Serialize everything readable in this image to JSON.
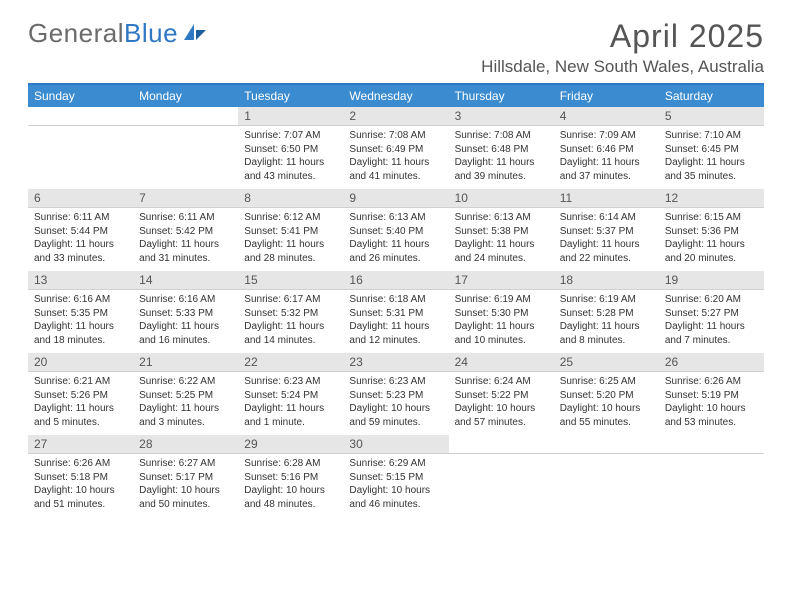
{
  "brand": {
    "word1": "General",
    "word2": "Blue"
  },
  "title": "April 2025",
  "location": "Hillsdale, New South Wales, Australia",
  "colors": {
    "header_bg": "#3b8bd0",
    "header_border": "#2f78c4",
    "daynum_bg": "#e6e6e6",
    "text": "#333333",
    "title": "#555555"
  },
  "weekdays": [
    "Sunday",
    "Monday",
    "Tuesday",
    "Wednesday",
    "Thursday",
    "Friday",
    "Saturday"
  ],
  "grid": {
    "lead_blank": 2,
    "days_in_month": 30
  },
  "days": {
    "1": {
      "sunrise": "7:07 AM",
      "sunset": "6:50 PM",
      "daylight": "11 hours and 43 minutes."
    },
    "2": {
      "sunrise": "7:08 AM",
      "sunset": "6:49 PM",
      "daylight": "11 hours and 41 minutes."
    },
    "3": {
      "sunrise": "7:08 AM",
      "sunset": "6:48 PM",
      "daylight": "11 hours and 39 minutes."
    },
    "4": {
      "sunrise": "7:09 AM",
      "sunset": "6:46 PM",
      "daylight": "11 hours and 37 minutes."
    },
    "5": {
      "sunrise": "7:10 AM",
      "sunset": "6:45 PM",
      "daylight": "11 hours and 35 minutes."
    },
    "6": {
      "sunrise": "6:11 AM",
      "sunset": "5:44 PM",
      "daylight": "11 hours and 33 minutes."
    },
    "7": {
      "sunrise": "6:11 AM",
      "sunset": "5:42 PM",
      "daylight": "11 hours and 31 minutes."
    },
    "8": {
      "sunrise": "6:12 AM",
      "sunset": "5:41 PM",
      "daylight": "11 hours and 28 minutes."
    },
    "9": {
      "sunrise": "6:13 AM",
      "sunset": "5:40 PM",
      "daylight": "11 hours and 26 minutes."
    },
    "10": {
      "sunrise": "6:13 AM",
      "sunset": "5:38 PM",
      "daylight": "11 hours and 24 minutes."
    },
    "11": {
      "sunrise": "6:14 AM",
      "sunset": "5:37 PM",
      "daylight": "11 hours and 22 minutes."
    },
    "12": {
      "sunrise": "6:15 AM",
      "sunset": "5:36 PM",
      "daylight": "11 hours and 20 minutes."
    },
    "13": {
      "sunrise": "6:16 AM",
      "sunset": "5:35 PM",
      "daylight": "11 hours and 18 minutes."
    },
    "14": {
      "sunrise": "6:16 AM",
      "sunset": "5:33 PM",
      "daylight": "11 hours and 16 minutes."
    },
    "15": {
      "sunrise": "6:17 AM",
      "sunset": "5:32 PM",
      "daylight": "11 hours and 14 minutes."
    },
    "16": {
      "sunrise": "6:18 AM",
      "sunset": "5:31 PM",
      "daylight": "11 hours and 12 minutes."
    },
    "17": {
      "sunrise": "6:19 AM",
      "sunset": "5:30 PM",
      "daylight": "11 hours and 10 minutes."
    },
    "18": {
      "sunrise": "6:19 AM",
      "sunset": "5:28 PM",
      "daylight": "11 hours and 8 minutes."
    },
    "19": {
      "sunrise": "6:20 AM",
      "sunset": "5:27 PM",
      "daylight": "11 hours and 7 minutes."
    },
    "20": {
      "sunrise": "6:21 AM",
      "sunset": "5:26 PM",
      "daylight": "11 hours and 5 minutes."
    },
    "21": {
      "sunrise": "6:22 AM",
      "sunset": "5:25 PM",
      "daylight": "11 hours and 3 minutes."
    },
    "22": {
      "sunrise": "6:23 AM",
      "sunset": "5:24 PM",
      "daylight": "11 hours and 1 minute."
    },
    "23": {
      "sunrise": "6:23 AM",
      "sunset": "5:23 PM",
      "daylight": "10 hours and 59 minutes."
    },
    "24": {
      "sunrise": "6:24 AM",
      "sunset": "5:22 PM",
      "daylight": "10 hours and 57 minutes."
    },
    "25": {
      "sunrise": "6:25 AM",
      "sunset": "5:20 PM",
      "daylight": "10 hours and 55 minutes."
    },
    "26": {
      "sunrise": "6:26 AM",
      "sunset": "5:19 PM",
      "daylight": "10 hours and 53 minutes."
    },
    "27": {
      "sunrise": "6:26 AM",
      "sunset": "5:18 PM",
      "daylight": "10 hours and 51 minutes."
    },
    "28": {
      "sunrise": "6:27 AM",
      "sunset": "5:17 PM",
      "daylight": "10 hours and 50 minutes."
    },
    "29": {
      "sunrise": "6:28 AM",
      "sunset": "5:16 PM",
      "daylight": "10 hours and 48 minutes."
    },
    "30": {
      "sunrise": "6:29 AM",
      "sunset": "5:15 PM",
      "daylight": "10 hours and 46 minutes."
    }
  },
  "labels": {
    "sunrise": "Sunrise:",
    "sunset": "Sunset:",
    "daylight": "Daylight:"
  }
}
